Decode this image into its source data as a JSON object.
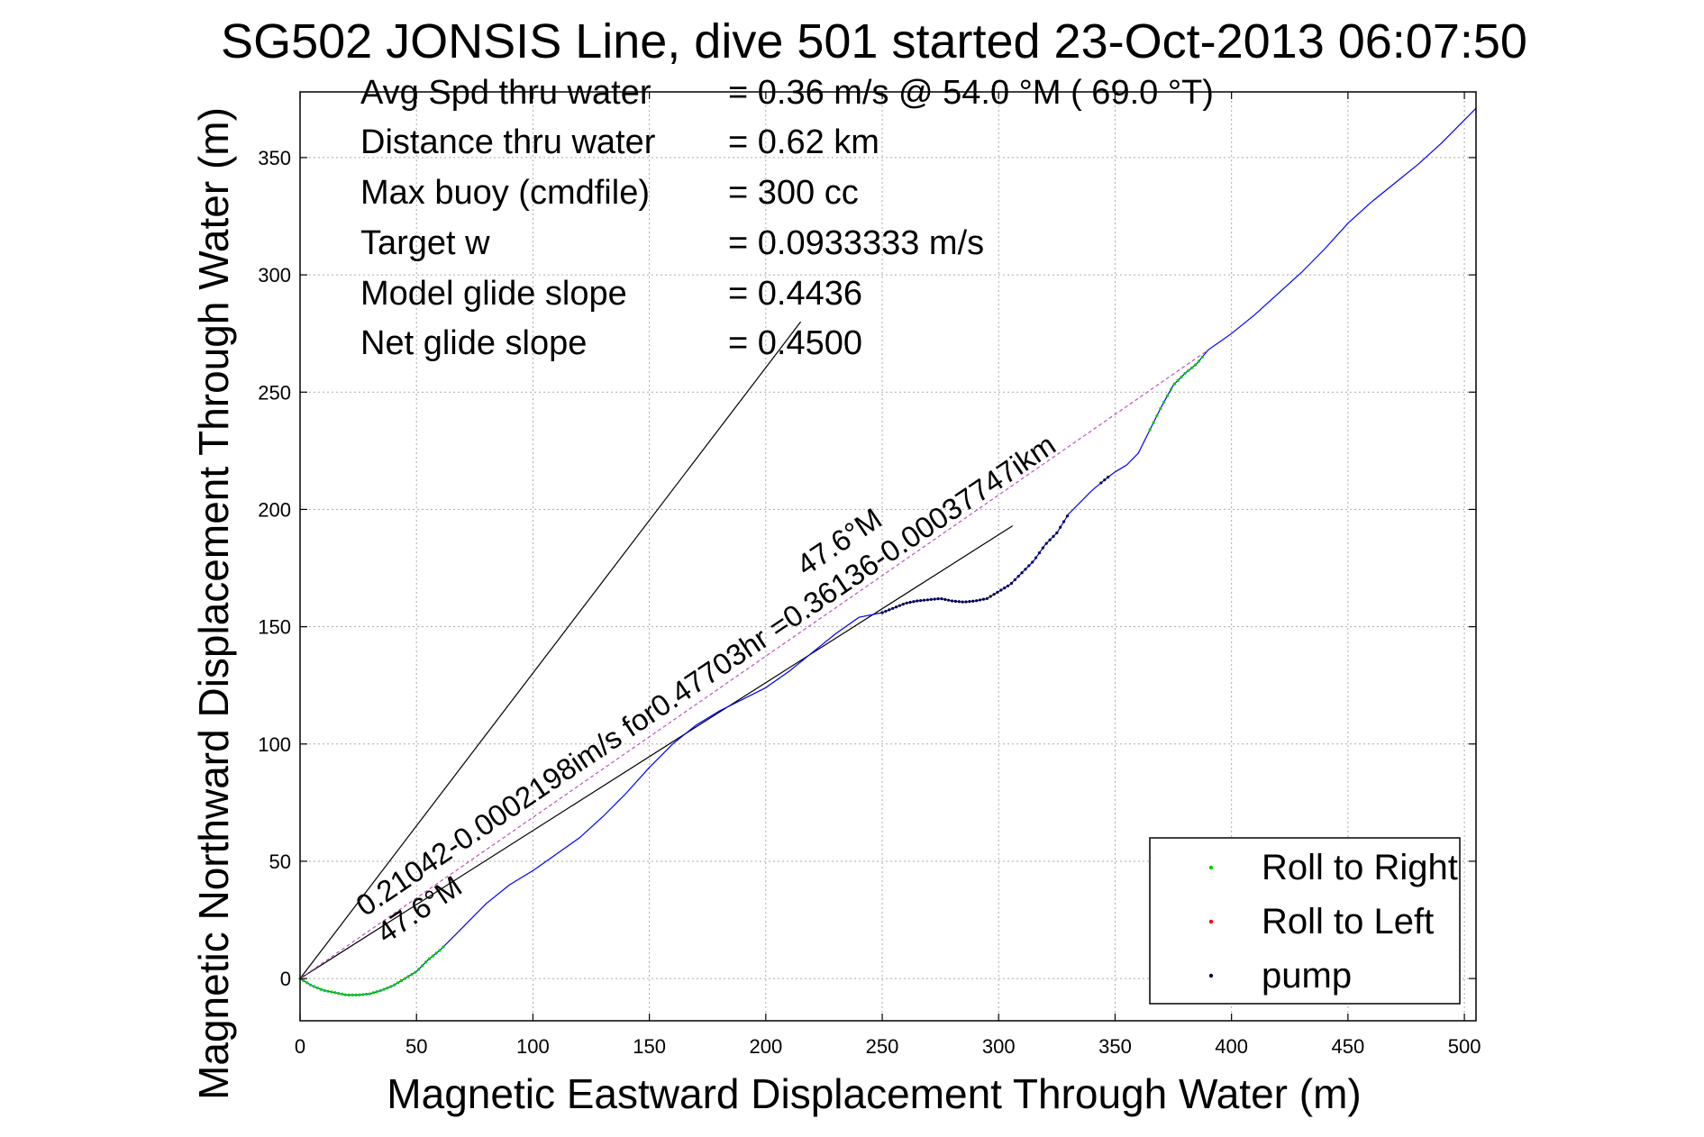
{
  "chart_data": {
    "type": "line",
    "title": "SG502 JONSIS Line, dive 501 started 23-Oct-2013 06:07:50",
    "xlabel": "Magnetic Eastward Displacement Through Water (m)",
    "ylabel": "Magnetic Northward Displacement Through Water (m)",
    "xlim": [
      0,
      505
    ],
    "ylim": [
      -18,
      378
    ],
    "xticks": [
      0,
      50,
      100,
      150,
      200,
      250,
      300,
      350,
      400,
      450,
      500
    ],
    "yticks": [
      0,
      50,
      100,
      150,
      200,
      250,
      300,
      350
    ],
    "xtick_labels": [
      "0",
      "50",
      "100",
      "150",
      "200",
      "250",
      "300",
      "350",
      "400",
      "450",
      "500"
    ],
    "ytick_labels": [
      "0",
      "50",
      "100",
      "150",
      "200",
      "250",
      "300",
      "350"
    ],
    "grid": true,
    "stats": [
      {
        "label": "Avg Spd thru water",
        "value": "=  0.36 m/s @  54.0 °M ( 69.0 °T)"
      },
      {
        "label": "Distance thru water",
        "value": "=  0.62 km"
      },
      {
        "label": "Max buoy (cmdfile)",
        "value": "= 300 cc"
      },
      {
        "label": "Target w",
        "value": "= 0.0933333 m/s"
      },
      {
        "label": "Model glide slope",
        "value": "= 0.4436"
      },
      {
        "label": "Net glide slope",
        "value": "= 0.4500"
      }
    ],
    "annotations": [
      {
        "text": "0.21042-0.0002198im/s for0.47703hr =0.36136-0.00037747ikm",
        "color": "#000000"
      },
      {
        "text": "47.6°M",
        "color": "#000000"
      },
      {
        "text": "47.6°M",
        "color": "#000000"
      }
    ],
    "reference_lines": [
      {
        "x": [
          0,
          215
        ],
        "y": [
          0,
          280
        ],
        "color": "#000000"
      },
      {
        "x": [
          0,
          306
        ],
        "y": [
          0,
          193
        ],
        "color": "#000000"
      },
      {
        "x": [
          0,
          390
        ],
        "y": [
          0,
          268
        ],
        "color": "#c050c0",
        "style": "dashed"
      }
    ],
    "track": {
      "color": "#0000ff",
      "x": [
        0,
        5,
        10,
        15,
        20,
        25,
        30,
        35,
        40,
        45,
        50,
        55,
        60,
        65,
        70,
        80,
        90,
        100,
        110,
        120,
        130,
        140,
        150,
        160,
        170,
        180,
        190,
        200,
        210,
        220,
        230,
        240,
        250,
        255,
        260,
        265,
        270,
        275,
        280,
        285,
        290,
        295,
        300,
        305,
        310,
        315,
        320,
        325,
        330,
        340,
        346,
        350,
        355,
        360,
        365,
        370,
        375,
        380,
        385,
        390,
        400,
        410,
        420,
        430,
        440,
        450,
        460,
        470,
        480,
        490,
        500,
        505
      ],
      "y": [
        0,
        -3,
        -5,
        -6,
        -7,
        -7,
        -6.5,
        -5,
        -3,
        0,
        3,
        8,
        12,
        17,
        22,
        32,
        40,
        46,
        53,
        60,
        69,
        79,
        90,
        100,
        108,
        114,
        119,
        124,
        131,
        139,
        147,
        154,
        156,
        158,
        160,
        161,
        161.5,
        162,
        161,
        160.5,
        161,
        162,
        165,
        168,
        173,
        178,
        185,
        190,
        198,
        208,
        213,
        216,
        219,
        224,
        234,
        244,
        253,
        258,
        262,
        268,
        275,
        283,
        292,
        301,
        311,
        322,
        331,
        339,
        347,
        356,
        366,
        371
      ]
    },
    "markers": [
      {
        "name": "Roll to Right",
        "color": "#00cc00",
        "x_range": [
          0,
          62
        ]
      },
      {
        "name": "Roll to Right",
        "color": "#00cc00",
        "x_range": [
          365,
          388
        ]
      },
      {
        "name": "pump",
        "color": "#000044",
        "x_range": [
          250,
          330
        ]
      },
      {
        "name": "pump",
        "color": "#000044",
        "x_range": [
          344,
          347
        ]
      }
    ],
    "legend": {
      "position": "bottom-right",
      "items": [
        {
          "label": "Roll to Right",
          "color": "#00cc00"
        },
        {
          "label": "Roll to Left",
          "color": "#ff0000"
        },
        {
          "label": "pump",
          "color": "#000044"
        }
      ]
    }
  }
}
